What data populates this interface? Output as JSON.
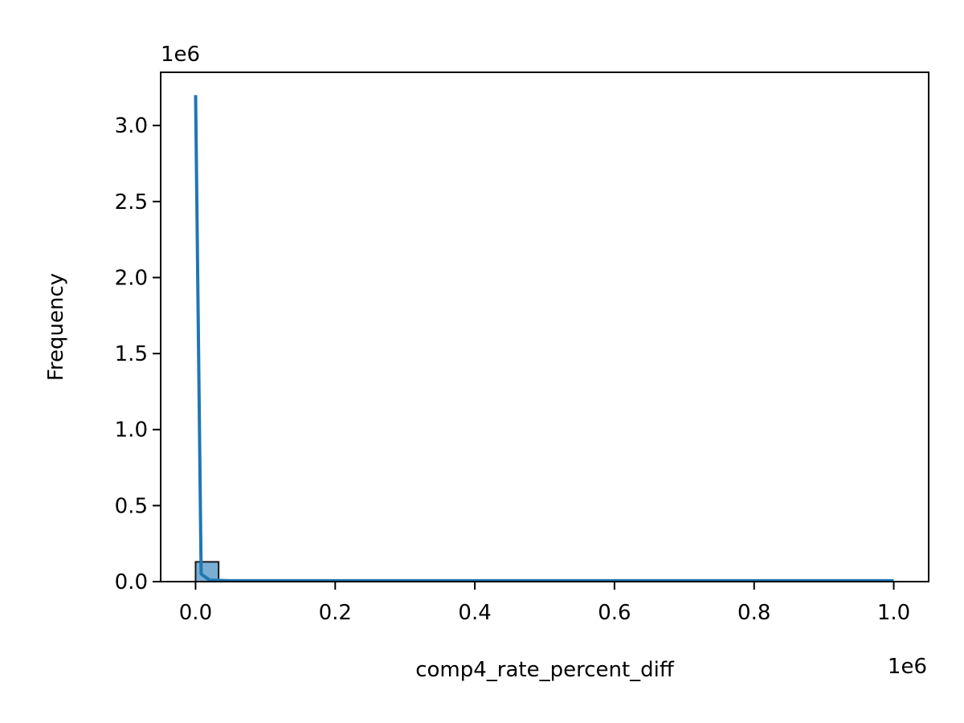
{
  "chart_data": {
    "type": "bar",
    "title": "",
    "xlabel": "comp4_rate_percent_diff",
    "ylabel": "Frequency",
    "x_offset_label": "1e6",
    "y_offset_label": "1e6",
    "xlim": [
      -0.05,
      1.05
    ],
    "ylim": [
      0,
      3.35
    ],
    "x_ticks": [
      0.0,
      0.2,
      0.4,
      0.6,
      0.8,
      1.0
    ],
    "x_tick_labels": [
      "0.0",
      "0.2",
      "0.4",
      "0.6",
      "0.8",
      "1.0"
    ],
    "y_ticks": [
      0.0,
      0.5,
      1.0,
      1.5,
      2.0,
      2.5,
      3.0
    ],
    "y_tick_labels": [
      "0.0",
      "0.5",
      "1.0",
      "1.5",
      "2.0",
      "2.5",
      "3.0"
    ],
    "bars": [
      {
        "x0": 0.0,
        "x1": 0.033,
        "value": 0.13
      }
    ],
    "kde_line": {
      "x": [
        0.0,
        0.008,
        0.02,
        0.05,
        0.2,
        0.4,
        0.6,
        0.8,
        1.0
      ],
      "y": [
        3.2,
        0.05,
        0.01,
        0.006,
        0.006,
        0.006,
        0.006,
        0.006,
        0.006
      ]
    },
    "grid": false,
    "legend": "none",
    "colors": {
      "bar_fill": "#7aaed3",
      "bar_edge": "#1a1a1a",
      "line": "#1f77b4",
      "axis": "#000000"
    }
  }
}
